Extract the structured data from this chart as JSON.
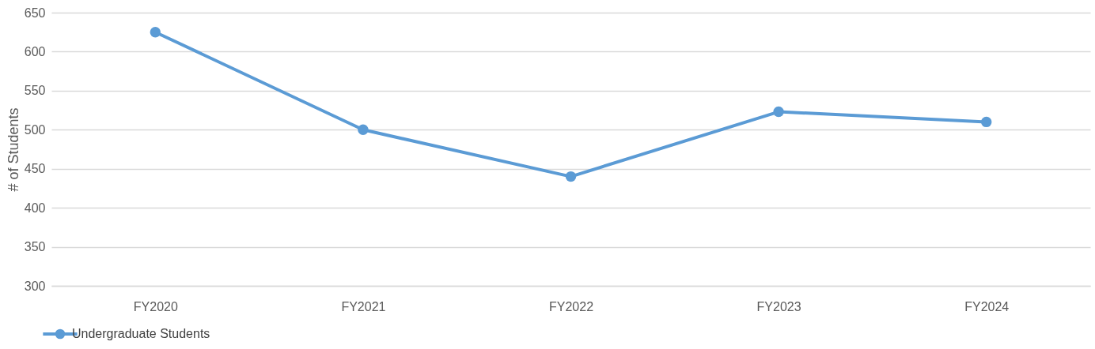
{
  "chart_data": {
    "type": "line",
    "ylabel": "# of Students",
    "categories": [
      "FY2020",
      "FY2021",
      "FY2022",
      "FY2023",
      "FY2024"
    ],
    "series": [
      {
        "name": "Undergraduate Students",
        "color": "#5b9bd5",
        "values": [
          625,
          500,
          440,
          523,
          510
        ]
      }
    ],
    "ylim": [
      300,
      650
    ],
    "yticks": [
      300,
      350,
      400,
      450,
      500,
      550,
      600,
      650
    ],
    "grid": "y",
    "legend": "bottom",
    "marker": "circle",
    "line_style": "solid"
  }
}
